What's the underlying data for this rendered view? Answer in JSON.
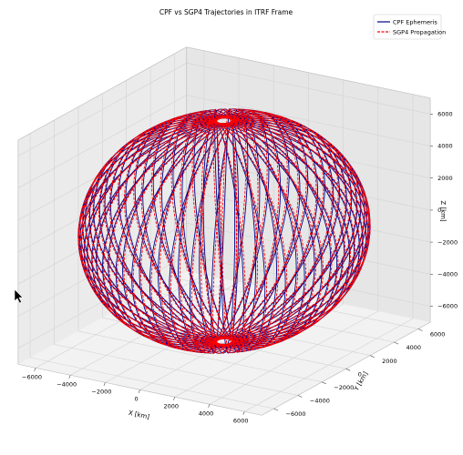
{
  "chart_data": {
    "type": "line",
    "projection": "3d",
    "title": "CPF vs SGP4 Trajectories in ITRF Frame",
    "xlabel": "X [km]",
    "ylabel": "Y [km]",
    "zlabel": "Z [km]",
    "xlim": [
      -7000,
      7000
    ],
    "ylim": [
      -7000,
      7000
    ],
    "zlim": [
      -7000,
      7000
    ],
    "x_ticks": [
      "−6000",
      "−4000",
      "−2000",
      "0",
      "2000",
      "4000",
      "6000"
    ],
    "y_ticks": [
      "−6000",
      "−4000",
      "−2000",
      "0",
      "2000",
      "4000",
      "6000"
    ],
    "z_ticks": [
      "−6000",
      "−4000",
      "−2000",
      "0",
      "2000",
      "4000",
      "6000"
    ],
    "grid": true,
    "legend_position": "top-right",
    "orbit_radius_km": 6900,
    "inclination_deg": 87,
    "series": [
      {
        "name": "CPF Ephemeris",
        "style": "solid",
        "color": "#00008b"
      },
      {
        "name": "SGP4 Propagation",
        "style": "dashed",
        "color": "#ff0000"
      }
    ]
  },
  "cursor_icon": "arrow-cursor-icon"
}
